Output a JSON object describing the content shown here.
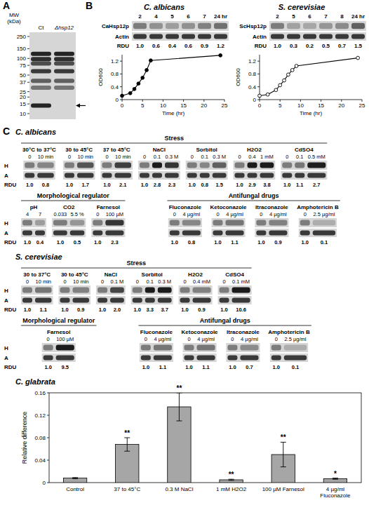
{
  "panel_labels": [
    "A",
    "B",
    "C"
  ],
  "panel_a": {
    "mw_label": "MW (kDa)",
    "markers": [
      250,
      150,
      100,
      75,
      50,
      37,
      25,
      20,
      15,
      10
    ],
    "lanes": [
      "Ct",
      "Δhsp12"
    ],
    "arrow_kda": 14
  },
  "panel_b": [
    {
      "title": "C. albicans",
      "protein": "CaHsp12p",
      "control": "Actin",
      "rdu_label": "RDU",
      "lanes": [
        "2",
        "4",
        "5",
        "6",
        "7",
        "24 hr"
      ],
      "rdu": [
        1.0,
        0.6,
        0.4,
        0.6,
        0.9,
        1.2
      ],
      "rdu_labels": [
        "1.0",
        "0.6",
        "0.4",
        "0.6",
        "0.9",
        "1.2"
      ]
    },
    {
      "title": "S. cerevisiae",
      "protein": "ScHsp12p",
      "control": "Actin",
      "rdu_label": "RDU",
      "lanes": [
        "2",
        "5",
        "6",
        "7",
        "8",
        "24 hr"
      ],
      "rdu": [
        1.0,
        0.3,
        0.2,
        0.5,
        0.7,
        1.5
      ],
      "rdu_labels": [
        "1.0",
        "0.3",
        "0.2",
        "0.5",
        "0.7",
        "1.5"
      ]
    }
  ],
  "chart_data": [
    {
      "type": "line",
      "x": [
        0,
        2,
        3,
        4,
        5,
        6,
        7,
        24
      ],
      "values": [
        0.12,
        0.2,
        0.33,
        0.5,
        0.68,
        0.92,
        1.22,
        1.38
      ],
      "color": "#000000",
      "marker": "circle",
      "line_style": "solid",
      "xlabel": "Time (hr)",
      "ylabel": "OD600",
      "xlim": [
        0,
        25
      ],
      "ylim": [
        0,
        1.4
      ],
      "xticks": [
        0,
        5,
        10,
        15,
        20,
        25
      ],
      "yticks": [
        0,
        0.4,
        0.8,
        1.2
      ],
      "grid": false
    },
    {
      "type": "line",
      "x": [
        0,
        2,
        4,
        5,
        6,
        7,
        8,
        9,
        24
      ],
      "values": [
        0.12,
        0.16,
        0.3,
        0.45,
        0.6,
        0.78,
        0.92,
        1.05,
        1.3
      ],
      "color": "#000000",
      "marker": "open-circle",
      "line_style": "solid",
      "xlabel": "Time (hr)",
      "ylabel": "OD600",
      "xlim": [
        0,
        25
      ],
      "ylim": [
        0,
        1.4
      ],
      "xticks": [
        0,
        5,
        10,
        15,
        20,
        25
      ],
      "yticks": [
        0,
        0.4,
        0.8,
        1.2
      ],
      "grid": false
    },
    {
      "type": "bar",
      "title": "C. glabrata",
      "categories": [
        "Control",
        "37 to 45°C",
        "0.3 M NaCl",
        "1 mM H2O2",
        "100 µM Farnesol",
        "4 µg/ml Fluconazole"
      ],
      "values": [
        0.008,
        0.068,
        0.135,
        0.005,
        0.05,
        0.007
      ],
      "errors": [
        0.001,
        0.012,
        0.025,
        0.001,
        0.022,
        0.001
      ],
      "annotations": [
        null,
        "**",
        "**",
        "**",
        "**",
        "*"
      ],
      "ylabel": "Relative difference",
      "ylim": [
        0,
        0.16
      ],
      "yticks": [
        0,
        0.04,
        0.08,
        0.12,
        0.16
      ],
      "color": "#a6a6a6",
      "grid": false
    }
  ],
  "panel_c": {
    "row_labels": [
      "H",
      "A",
      "RDU"
    ],
    "organisms": [
      {
        "title": "C. albicans",
        "rows": [
          [
            {
              "title": "Stress",
              "blots": [
                {
                  "title": "30°C to 37°C",
                  "lanes": [
                    "0",
                    "10 min"
                  ],
                  "rdu": [
                    1.0,
                    0.8
                  ],
                  "rdu_labels": [
                    "1.0",
                    "0.8"
                  ]
                },
                {
                  "title": "30 to 45°C",
                  "lanes": [
                    "0",
                    "10 min"
                  ],
                  "rdu": [
                    1.0,
                    1.7
                  ],
                  "rdu_labels": [
                    "1.0",
                    "1.7"
                  ]
                },
                {
                  "title": "37 to 45°C",
                  "lanes": [
                    "0",
                    "10 min"
                  ],
                  "rdu": [
                    1.0,
                    2.1
                  ],
                  "rdu_labels": [
                    "1.0",
                    "2.1"
                  ]
                },
                {
                  "title": "NaCl",
                  "lanes": [
                    "0",
                    "0.1",
                    "0.3 M"
                  ],
                  "rdu": [
                    1.0,
                    2.8,
                    2.3
                  ],
                  "rdu_labels": [
                    "1.0",
                    "2.8",
                    "2.3"
                  ]
                },
                {
                  "title": "Sorbitol",
                  "lanes": [
                    "0",
                    "0.1",
                    "0.3 M"
                  ],
                  "rdu": [
                    1.0,
                    0.8,
                    1.5
                  ],
                  "rdu_labels": [
                    "1.0",
                    "0.8",
                    "1.5"
                  ]
                },
                {
                  "title": "H2O2",
                  "lanes": [
                    "0",
                    "0.4",
                    "1 mM"
                  ],
                  "rdu": [
                    1.0,
                    2.9,
                    3.8
                  ],
                  "rdu_labels": [
                    "1.0",
                    "2.9",
                    "3.8"
                  ]
                },
                {
                  "title": "CdSO4",
                  "lanes": [
                    "0",
                    "0.1",
                    "0.5 mM"
                  ],
                  "rdu": [
                    1.0,
                    1.1,
                    2.7
                  ],
                  "rdu_labels": [
                    "1.0",
                    "1.1",
                    "2.7"
                  ]
                }
              ]
            }
          ],
          [
            {
              "title": "Morphological regulator",
              "blots": [
                {
                  "title": "pH",
                  "lanes": [
                    "4",
                    "7"
                  ],
                  "rdu": [
                    1.0,
                    0.4
                  ],
                  "rdu_labels": [
                    "1.0",
                    "0.4"
                  ]
                },
                {
                  "title": "CO2",
                  "lanes": [
                    "0.033",
                    "5.5 %"
                  ],
                  "rdu": [
                    1.0,
                    0.5
                  ],
                  "rdu_labels": [
                    "1.0",
                    "0.5"
                  ]
                },
                {
                  "title": "Farnesol",
                  "lanes": [
                    "0",
                    "100 µM"
                  ],
                  "rdu": [
                    1.0,
                    2.3
                  ],
                  "rdu_labels": [
                    "1.0",
                    "2.3"
                  ]
                }
              ]
            },
            {
              "title": "Antifungal drugs",
              "blots": [
                {
                  "title": "Fluconazole",
                  "lanes": [
                    "0",
                    "4 µg/ml"
                  ],
                  "rdu": [
                    1.0,
                    0.8
                  ],
                  "rdu_labels": [
                    "1.0",
                    "0.8"
                  ]
                },
                {
                  "title": "Ketoconazole",
                  "lanes": [
                    "0",
                    "4 µg/ml"
                  ],
                  "rdu": [
                    1.0,
                    1.1
                  ],
                  "rdu_labels": [
                    "1.0",
                    "1.1"
                  ]
                },
                {
                  "title": "Itraconazole",
                  "lanes": [
                    "0",
                    "4 µg/ml"
                  ],
                  "rdu": [
                    1.0,
                    0.9
                  ],
                  "rdu_labels": [
                    "1.0",
                    "0.9"
                  ]
                },
                {
                  "title": "Amphotericin B",
                  "lanes": [
                    "0",
                    "2.5 µg/ml"
                  ],
                  "rdu": [
                    1.0,
                    0.1
                  ],
                  "rdu_labels": [
                    "1.0",
                    "0.1"
                  ]
                }
              ]
            }
          ]
        ]
      },
      {
        "title": "S. cerevisiae",
        "rows": [
          [
            {
              "title": "Stress",
              "blots": [
                {
                  "title": "30 to 37°C",
                  "lanes": [
                    "0",
                    "10 min"
                  ],
                  "rdu": [
                    1.0,
                    1.1
                  ],
                  "rdu_labels": [
                    "1.0",
                    "1.1"
                  ]
                },
                {
                  "title": "30 to 45°C",
                  "lanes": [
                    "0",
                    "10 min"
                  ],
                  "rdu": [
                    1.0,
                    0.9
                  ],
                  "rdu_labels": [
                    "1.0",
                    "0.9"
                  ]
                },
                {
                  "title": "NaCl",
                  "lanes": [
                    "0",
                    "0.1 M"
                  ],
                  "rdu": [
                    1.0,
                    2.0
                  ],
                  "rdu_labels": [
                    "1.0",
                    "2.0"
                  ]
                },
                {
                  "title": "Sorbitol",
                  "lanes": [
                    "0",
                    "0.1",
                    "0.3 M"
                  ],
                  "rdu": [
                    1.0,
                    3.3,
                    3.7
                  ],
                  "rdu_labels": [
                    "1.0",
                    "3.3",
                    "3.7"
                  ]
                },
                {
                  "title": "H2O2",
                  "lanes": [
                    "0",
                    "0.4 mM"
                  ],
                  "rdu": [
                    1.0,
                    0.9
                  ],
                  "rdu_labels": [
                    "1.0",
                    "0.9"
                  ]
                },
                {
                  "title": "CdSO4",
                  "lanes": [
                    "0",
                    "0.1 mM"
                  ],
                  "rdu": [
                    1.0,
                    10.6
                  ],
                  "rdu_labels": [
                    "1.0",
                    "10.6"
                  ]
                }
              ]
            }
          ],
          [
            {
              "title": "Morphological regulator",
              "blots": [
                {
                  "title": "Farnesol",
                  "lanes": [
                    "0",
                    "100 µM"
                  ],
                  "rdu": [
                    1.0,
                    9.5
                  ],
                  "rdu_labels": [
                    "1.0",
                    "9.5"
                  ]
                }
              ]
            },
            {
              "title": "Antifungal drugs",
              "blots": [
                {
                  "title": "Fluconazole",
                  "lanes": [
                    "0",
                    "4 µg/ml"
                  ],
                  "rdu": [
                    1.0,
                    1.1
                  ],
                  "rdu_labels": [
                    "1.0",
                    "1.1"
                  ]
                },
                {
                  "title": "Ketoconazole",
                  "lanes": [
                    "0",
                    "4 µg/ml"
                  ],
                  "rdu": [
                    1.0,
                    1.1
                  ],
                  "rdu_labels": [
                    "1.0",
                    "1.1"
                  ]
                },
                {
                  "title": "Itraconazole",
                  "lanes": [
                    "0",
                    "4 µg/ml"
                  ],
                  "rdu": [
                    1.0,
                    0.7
                  ],
                  "rdu_labels": [
                    "1.0",
                    "0.7"
                  ]
                },
                {
                  "title": "Amphotericin B",
                  "lanes": [
                    "0",
                    "2.5 µg/ml"
                  ],
                  "rdu": [
                    1.0,
                    0.1
                  ],
                  "rdu_labels": [
                    "1.0",
                    "0.1"
                  ]
                }
              ]
            }
          ]
        ]
      }
    ]
  }
}
